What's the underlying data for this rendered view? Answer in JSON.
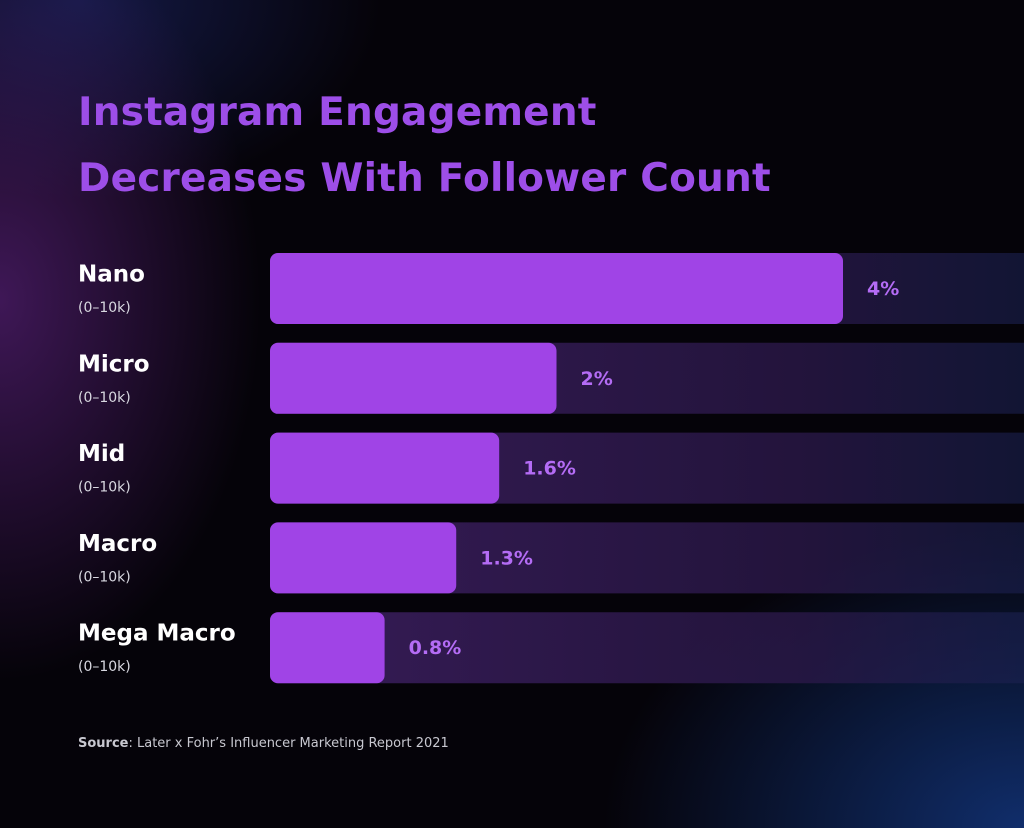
{
  "chart_data": {
    "type": "bar",
    "orientation": "horizontal",
    "title": "Instagram Engagement Decreases With Follower Count",
    "categories": [
      "Nano",
      "Micro",
      "Mid",
      "Macro",
      "Mega Macro"
    ],
    "subcategories": [
      "(0–10k)",
      "(0–10k)",
      "(0–10k)",
      "(0–10k)",
      "(0–10k)"
    ],
    "values": [
      4,
      2,
      1.6,
      1.3,
      0.8
    ],
    "value_labels": [
      "4%",
      "2%",
      "1.6%",
      "1.3%",
      "0.8%"
    ],
    "color": "#a044e6",
    "source_label": "Source",
    "source_text": ": Later x Fohr’s Influencer Marketing Report 2021"
  }
}
